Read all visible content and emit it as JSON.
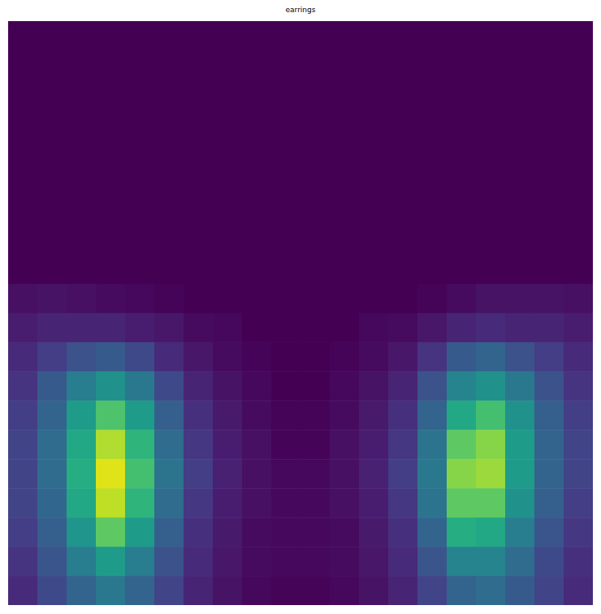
{
  "chart_data": {
    "type": "heatmap",
    "title": "earrings",
    "tick_labels": false,
    "zlim": [
      0,
      1
    ],
    "z": [
      [
        0,
        0,
        0,
        0,
        0,
        0,
        0,
        0,
        0,
        0,
        0,
        0,
        0,
        0,
        0,
        0,
        0,
        0,
        0,
        0
      ],
      [
        0,
        0,
        0,
        0,
        0,
        0,
        0,
        0,
        0,
        0,
        0,
        0,
        0,
        0,
        0,
        0,
        0,
        0,
        0,
        0
      ],
      [
        0,
        0,
        0,
        0,
        0,
        0,
        0,
        0,
        0,
        0,
        0,
        0,
        0,
        0,
        0,
        0,
        0,
        0,
        0,
        0
      ],
      [
        0,
        0,
        0,
        0,
        0,
        0,
        0,
        0,
        0,
        0,
        0,
        0,
        0,
        0,
        0,
        0,
        0,
        0,
        0,
        0
      ],
      [
        0,
        0,
        0,
        0,
        0,
        0,
        0,
        0,
        0,
        0,
        0,
        0,
        0,
        0,
        0,
        0,
        0,
        0,
        0,
        0
      ],
      [
        0,
        0,
        0,
        0,
        0,
        0,
        0,
        0,
        0,
        0,
        0,
        0,
        0,
        0,
        0,
        0,
        0,
        0,
        0,
        0
      ],
      [
        0,
        0,
        0,
        0,
        0,
        0,
        0,
        0,
        0,
        0,
        0,
        0,
        0,
        0,
        0,
        0,
        0,
        0,
        0,
        0
      ],
      [
        0,
        0,
        0,
        0,
        0,
        0,
        0,
        0,
        0,
        0,
        0,
        0,
        0,
        0,
        0,
        0,
        0,
        0,
        0,
        0
      ],
      [
        0,
        0,
        0,
        0,
        0,
        0,
        0,
        0,
        0,
        0,
        0,
        0,
        0,
        0,
        0,
        0,
        0,
        0,
        0,
        0
      ],
      [
        0.04,
        0.05,
        0.04,
        0.03,
        0.02,
        0.01,
        0,
        0,
        0,
        0,
        0,
        0,
        0,
        0,
        0.01,
        0.03,
        0.05,
        0.05,
        0.05,
        0.04
      ],
      [
        0.08,
        0.1,
        0.1,
        0.1,
        0.08,
        0.06,
        0.03,
        0.02,
        0,
        0,
        0,
        0,
        0.02,
        0.03,
        0.06,
        0.1,
        0.12,
        0.1,
        0.1,
        0.08
      ],
      [
        0.12,
        0.18,
        0.25,
        0.28,
        0.22,
        0.12,
        0.06,
        0.03,
        0.01,
        0,
        0,
        0.01,
        0.03,
        0.06,
        0.15,
        0.28,
        0.32,
        0.25,
        0.18,
        0.12
      ],
      [
        0.15,
        0.28,
        0.42,
        0.5,
        0.4,
        0.22,
        0.1,
        0.05,
        0.02,
        0,
        0,
        0.02,
        0.05,
        0.1,
        0.25,
        0.45,
        0.5,
        0.4,
        0.25,
        0.15
      ],
      [
        0.18,
        0.32,
        0.55,
        0.72,
        0.55,
        0.3,
        0.14,
        0.07,
        0.03,
        0.01,
        0.01,
        0.03,
        0.07,
        0.14,
        0.32,
        0.6,
        0.7,
        0.5,
        0.3,
        0.18
      ],
      [
        0.2,
        0.35,
        0.6,
        0.88,
        0.65,
        0.35,
        0.16,
        0.08,
        0.04,
        0.01,
        0.01,
        0.04,
        0.08,
        0.16,
        0.38,
        0.75,
        0.82,
        0.55,
        0.32,
        0.2
      ],
      [
        0.2,
        0.35,
        0.62,
        0.95,
        0.7,
        0.38,
        0.18,
        0.09,
        0.04,
        0.02,
        0.02,
        0.04,
        0.09,
        0.18,
        0.4,
        0.82,
        0.85,
        0.55,
        0.32,
        0.2
      ],
      [
        0.2,
        0.33,
        0.6,
        0.9,
        0.65,
        0.35,
        0.16,
        0.08,
        0.04,
        0.02,
        0.02,
        0.04,
        0.08,
        0.16,
        0.38,
        0.75,
        0.75,
        0.5,
        0.3,
        0.18
      ],
      [
        0.18,
        0.3,
        0.52,
        0.75,
        0.55,
        0.3,
        0.14,
        0.07,
        0.03,
        0.02,
        0.02,
        0.03,
        0.07,
        0.14,
        0.32,
        0.62,
        0.6,
        0.42,
        0.26,
        0.16
      ],
      [
        0.15,
        0.26,
        0.42,
        0.55,
        0.42,
        0.25,
        0.12,
        0.06,
        0.03,
        0.02,
        0.02,
        0.03,
        0.06,
        0.12,
        0.26,
        0.45,
        0.45,
        0.35,
        0.22,
        0.14
      ],
      [
        0.12,
        0.22,
        0.32,
        0.4,
        0.32,
        0.2,
        0.1,
        0.05,
        0.02,
        0.01,
        0.01,
        0.02,
        0.05,
        0.1,
        0.2,
        0.32,
        0.35,
        0.28,
        0.2,
        0.12
      ]
    ]
  }
}
